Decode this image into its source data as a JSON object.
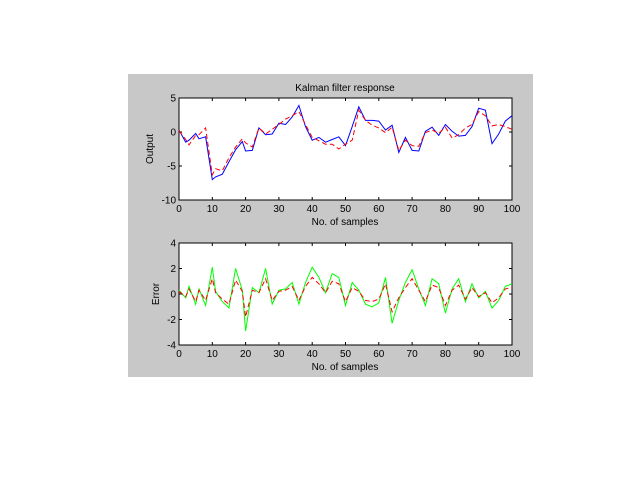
{
  "figure": {
    "background_color": "#c8c8c8",
    "axes_background_color": "#ffffff"
  },
  "chart_data": [
    {
      "type": "line",
      "title": "Kalman filter response",
      "xlabel": "No. of samples",
      "ylabel": "Output",
      "xlim": [
        0,
        100
      ],
      "ylim": [
        -10,
        5
      ],
      "xticks": [
        0,
        10,
        20,
        30,
        40,
        50,
        60,
        70,
        80,
        90,
        100
      ],
      "yticks": [
        -10,
        -5,
        0,
        5
      ],
      "grid": false,
      "series": [
        {
          "color": "#0000ff",
          "style": "solid",
          "x": [
            0,
            2,
            3,
            5,
            6,
            8,
            10,
            11,
            13,
            15,
            17,
            19,
            20,
            22,
            24,
            26,
            28,
            30,
            32,
            34,
            36,
            38,
            40,
            42,
            44,
            46,
            48,
            50,
            52,
            54,
            56,
            58,
            60,
            62,
            64,
            66,
            68,
            70,
            72,
            74,
            76,
            78,
            80,
            82,
            84,
            86,
            88,
            90,
            92,
            94,
            96,
            98,
            100
          ],
          "values": [
            0.3,
            -1.5,
            -1.2,
            -0.2,
            -1,
            -0.7,
            -7,
            -6.6,
            -6.2,
            -4.4,
            -2.6,
            -1.4,
            -2.8,
            -2.7,
            0.6,
            -0.4,
            -0.3,
            1.3,
            1.1,
            2.2,
            3.9,
            0.8,
            -1.2,
            -0.8,
            -1.5,
            -1.1,
            -0.7,
            -2,
            0.8,
            3.7,
            1.7,
            1.7,
            1.6,
            0.3,
            1,
            -3,
            -0.8,
            -2.7,
            -2.8,
            0.1,
            0.7,
            -0.5,
            1.1,
            0.1,
            -0.6,
            -0.5,
            0.8,
            3.5,
            3.2,
            -1.7,
            -0.3,
            1.6,
            2.4
          ]
        },
        {
          "color": "#ff0000",
          "style": "dashed",
          "x": [
            0,
            2,
            3,
            5,
            6,
            8,
            10,
            11,
            13,
            15,
            17,
            19,
            20,
            22,
            24,
            26,
            28,
            30,
            32,
            34,
            36,
            38,
            40,
            42,
            44,
            46,
            48,
            50,
            52,
            54,
            56,
            58,
            60,
            62,
            64,
            66,
            68,
            70,
            72,
            74,
            76,
            78,
            80,
            82,
            84,
            86,
            88,
            90,
            92,
            94,
            96,
            98,
            100
          ],
          "values": [
            0.2,
            -1.1,
            -1.9,
            -0.5,
            -0.4,
            0.6,
            -6.3,
            -5.4,
            -5.7,
            -3.8,
            -2.2,
            -1,
            -1.6,
            -2.2,
            0.6,
            -0.3,
            0.4,
            1.1,
            1.9,
            2.4,
            3,
            1.1,
            -0.8,
            -1.3,
            -1.8,
            -1.8,
            -2.5,
            -1.8,
            -1.2,
            3.2,
            1.7,
            1,
            0.6,
            -0.1,
            0.7,
            -2.7,
            -1.2,
            -2,
            -2.1,
            -0.1,
            0.3,
            -0.2,
            0.7,
            -0.9,
            -0.4,
            0.6,
            1.1,
            3,
            2.4,
            0.9,
            1.1,
            0.8,
            0.4
          ]
        }
      ]
    },
    {
      "type": "line",
      "title": "",
      "xlabel": "No. of samples",
      "ylabel": "Error",
      "xlim": [
        0,
        100
      ],
      "ylim": [
        -4,
        4
      ],
      "xticks": [
        0,
        10,
        20,
        30,
        40,
        50,
        60,
        70,
        80,
        90,
        100
      ],
      "yticks": [
        -4,
        -2,
        0,
        2,
        4
      ],
      "grid": false,
      "series": [
        {
          "color": "#00ff00",
          "style": "solid",
          "x": [
            0,
            2,
            3,
            5,
            6,
            8,
            10,
            11,
            13,
            15,
            17,
            19,
            20,
            22,
            24,
            26,
            28,
            30,
            32,
            34,
            36,
            38,
            40,
            42,
            44,
            46,
            48,
            50,
            52,
            54,
            56,
            58,
            60,
            62,
            64,
            66,
            68,
            70,
            72,
            74,
            76,
            78,
            80,
            82,
            84,
            86,
            88,
            90,
            92,
            94,
            96,
            98,
            100
          ],
          "values": [
            0.3,
            -0.3,
            0.6,
            -0.8,
            0.4,
            -0.9,
            2.1,
            0.2,
            -0.6,
            -1.1,
            2,
            0.3,
            -2.9,
            0.5,
            0.1,
            2,
            -0.8,
            0.3,
            0.4,
            0.9,
            -0.8,
            0.9,
            2.1,
            1.3,
            0.1,
            1.6,
            1.3,
            -0.9,
            0.9,
            0.3,
            -0.8,
            -1,
            -0.7,
            1.3,
            -2.3,
            -0.5,
            0.9,
            1.9,
            0.4,
            -0.9,
            1.2,
            0.8,
            -1.5,
            0.4,
            1.2,
            -0.6,
            0.8,
            -0.3,
            0.2,
            -1.1,
            -0.5,
            0.6,
            0.8
          ]
        },
        {
          "color": "#ff0000",
          "style": "dashed",
          "x": [
            0,
            2,
            3,
            5,
            6,
            8,
            10,
            11,
            13,
            15,
            17,
            19,
            20,
            22,
            24,
            26,
            28,
            30,
            32,
            34,
            36,
            38,
            40,
            42,
            44,
            46,
            48,
            50,
            52,
            54,
            56,
            58,
            60,
            62,
            64,
            66,
            68,
            70,
            72,
            74,
            76,
            78,
            80,
            82,
            84,
            86,
            88,
            90,
            92,
            94,
            96,
            98,
            100
          ],
          "values": [
            0.2,
            -0.2,
            0.4,
            -0.6,
            0.3,
            -0.5,
            1.2,
            0.1,
            -0.4,
            -0.8,
            1.1,
            0.2,
            -1.8,
            0.3,
            0.1,
            1.2,
            -0.5,
            0.2,
            0.3,
            0.6,
            -0.5,
            0.6,
            1.3,
            0.8,
            0.1,
            1,
            0.8,
            -0.6,
            0.5,
            0.2,
            -0.5,
            -0.6,
            -0.4,
            0.8,
            -1.4,
            -0.3,
            0.5,
            1.2,
            0.3,
            -0.6,
            0.7,
            0.5,
            -0.9,
            0.3,
            0.7,
            -0.4,
            0.5,
            -0.2,
            0.1,
            -0.7,
            -0.3,
            0.4,
            0.5
          ]
        }
      ]
    }
  ]
}
